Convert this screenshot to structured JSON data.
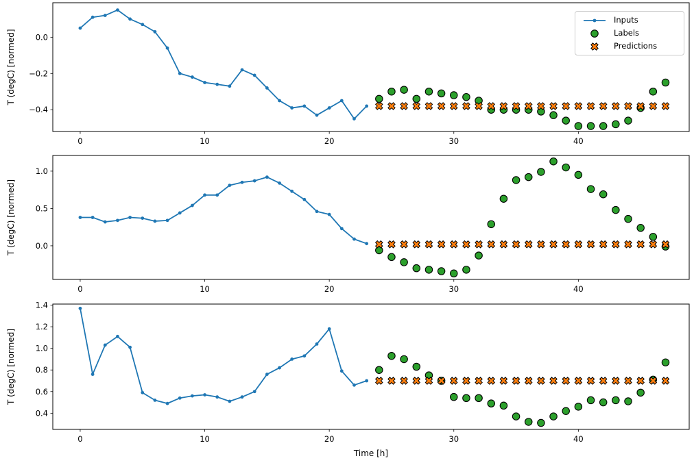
{
  "legend": {
    "position": "upper right",
    "entries": [
      "Inputs",
      "Labels",
      "Predictions"
    ]
  },
  "chart_data": [
    {
      "type": "line+scatter",
      "title": "",
      "xlabel": "",
      "ylabel": "T (degC) [normed]",
      "xlim": [
        -2.2,
        48.9
      ],
      "ylim": [
        -0.52,
        0.19
      ],
      "xticks": [
        0,
        10,
        20,
        30,
        40
      ],
      "yticks": [
        -0.4,
        -0.2,
        0.0
      ],
      "grid": false,
      "legend_position": "upper right",
      "series": [
        {
          "name": "Inputs",
          "type": "line",
          "marker": "dot",
          "color": "#1f77b4",
          "x": [
            0,
            1,
            2,
            3,
            4,
            5,
            6,
            7,
            8,
            9,
            10,
            11,
            12,
            13,
            14,
            15,
            16,
            17,
            18,
            19,
            20,
            21,
            22,
            23
          ],
          "y": [
            0.05,
            0.11,
            0.12,
            0.15,
            0.1,
            0.07,
            0.03,
            -0.06,
            -0.2,
            -0.22,
            -0.25,
            -0.26,
            -0.27,
            -0.18,
            -0.21,
            -0.28,
            -0.35,
            -0.39,
            -0.38,
            -0.43,
            -0.39,
            -0.35,
            -0.45,
            -0.38
          ]
        },
        {
          "name": "Labels",
          "type": "scatter",
          "marker": "circle",
          "color": "#2ca02c",
          "edge": "#000000",
          "x": [
            24,
            25,
            26,
            27,
            28,
            29,
            30,
            31,
            32,
            33,
            34,
            35,
            36,
            37,
            38,
            39,
            40,
            41,
            42,
            43,
            44,
            45,
            46,
            47
          ],
          "y": [
            -0.34,
            -0.3,
            -0.29,
            -0.34,
            -0.3,
            -0.31,
            -0.32,
            -0.33,
            -0.35,
            -0.4,
            -0.4,
            -0.4,
            -0.4,
            -0.41,
            -0.43,
            -0.46,
            -0.49,
            -0.49,
            -0.49,
            -0.48,
            -0.46,
            -0.39,
            -0.3,
            -0.25
          ]
        },
        {
          "name": "Predictions",
          "type": "scatter",
          "marker": "x",
          "color": "#ff7f0e",
          "edge": "#000000",
          "x": [
            24,
            25,
            26,
            27,
            28,
            29,
            30,
            31,
            32,
            33,
            34,
            35,
            36,
            37,
            38,
            39,
            40,
            41,
            42,
            43,
            44,
            45,
            46,
            47
          ],
          "y": [
            -0.38,
            -0.38,
            -0.38,
            -0.38,
            -0.38,
            -0.38,
            -0.38,
            -0.38,
            -0.38,
            -0.38,
            -0.38,
            -0.38,
            -0.38,
            -0.38,
            -0.38,
            -0.38,
            -0.38,
            -0.38,
            -0.38,
            -0.38,
            -0.38,
            -0.38,
            -0.38,
            -0.38
          ]
        }
      ]
    },
    {
      "type": "line+scatter",
      "title": "",
      "xlabel": "",
      "ylabel": "T (degC) [normed]",
      "xlim": [
        -2.2,
        48.9
      ],
      "ylim": [
        -0.45,
        1.21
      ],
      "xticks": [
        0,
        10,
        20,
        30,
        40
      ],
      "yticks": [
        0.0,
        0.5,
        1.0
      ],
      "grid": false,
      "series": [
        {
          "name": "Inputs",
          "type": "line",
          "marker": "dot",
          "color": "#1f77b4",
          "x": [
            0,
            1,
            2,
            3,
            4,
            5,
            6,
            7,
            8,
            9,
            10,
            11,
            12,
            13,
            14,
            15,
            16,
            17,
            18,
            19,
            20,
            21,
            22,
            23
          ],
          "y": [
            0.38,
            0.38,
            0.32,
            0.34,
            0.38,
            0.37,
            0.33,
            0.34,
            0.44,
            0.54,
            0.68,
            0.68,
            0.81,
            0.85,
            0.87,
            0.92,
            0.84,
            0.73,
            0.62,
            0.46,
            0.42,
            0.23,
            0.09,
            0.03
          ]
        },
        {
          "name": "Labels",
          "type": "scatter",
          "marker": "circle",
          "color": "#2ca02c",
          "edge": "#000000",
          "x": [
            24,
            25,
            26,
            27,
            28,
            29,
            30,
            31,
            32,
            33,
            34,
            35,
            36,
            37,
            38,
            39,
            40,
            41,
            42,
            43,
            44,
            45,
            46,
            47
          ],
          "y": [
            -0.06,
            -0.15,
            -0.22,
            -0.3,
            -0.32,
            -0.34,
            -0.37,
            -0.32,
            -0.13,
            0.29,
            0.63,
            0.88,
            0.92,
            0.99,
            1.13,
            1.05,
            0.95,
            0.76,
            0.69,
            0.48,
            0.36,
            0.24,
            0.12,
            -0.01
          ]
        },
        {
          "name": "Predictions",
          "type": "scatter",
          "marker": "x",
          "color": "#ff7f0e",
          "edge": "#000000",
          "x": [
            24,
            25,
            26,
            27,
            28,
            29,
            30,
            31,
            32,
            33,
            34,
            35,
            36,
            37,
            38,
            39,
            40,
            41,
            42,
            43,
            44,
            45,
            46,
            47
          ],
          "y": [
            0.02,
            0.02,
            0.02,
            0.02,
            0.02,
            0.02,
            0.02,
            0.02,
            0.02,
            0.02,
            0.02,
            0.02,
            0.02,
            0.02,
            0.02,
            0.02,
            0.02,
            0.02,
            0.02,
            0.02,
            0.02,
            0.02,
            0.02,
            0.02
          ]
        }
      ]
    },
    {
      "type": "line+scatter",
      "title": "",
      "xlabel": "Time [h]",
      "ylabel": "T (degC) [normed]",
      "xlim": [
        -2.2,
        48.9
      ],
      "ylim": [
        0.25,
        1.41
      ],
      "xticks": [
        0,
        10,
        20,
        30,
        40
      ],
      "yticks": [
        0.4,
        0.6,
        0.8,
        1.0,
        1.2,
        1.4
      ],
      "grid": false,
      "series": [
        {
          "name": "Inputs",
          "type": "line",
          "marker": "dot",
          "color": "#1f77b4",
          "x": [
            0,
            1,
            2,
            3,
            4,
            5,
            6,
            7,
            8,
            9,
            10,
            11,
            12,
            13,
            14,
            15,
            16,
            17,
            18,
            19,
            20,
            21,
            22,
            23
          ],
          "y": [
            1.37,
            0.76,
            1.03,
            1.11,
            1.01,
            0.59,
            0.52,
            0.49,
            0.54,
            0.56,
            0.57,
            0.55,
            0.51,
            0.55,
            0.6,
            0.76,
            0.82,
            0.9,
            0.93,
            1.04,
            1.18,
            0.79,
            0.66,
            0.7
          ]
        },
        {
          "name": "Labels",
          "type": "scatter",
          "marker": "circle",
          "color": "#2ca02c",
          "edge": "#000000",
          "x": [
            24,
            25,
            26,
            27,
            28,
            29,
            30,
            31,
            32,
            33,
            34,
            35,
            36,
            37,
            38,
            39,
            40,
            41,
            42,
            43,
            44,
            45,
            46,
            47
          ],
          "y": [
            0.8,
            0.93,
            0.9,
            0.83,
            0.75,
            0.7,
            0.55,
            0.54,
            0.54,
            0.49,
            0.47,
            0.37,
            0.32,
            0.31,
            0.37,
            0.42,
            0.46,
            0.52,
            0.5,
            0.52,
            0.51,
            0.59,
            0.71,
            0.87
          ]
        },
        {
          "name": "Predictions",
          "type": "scatter",
          "marker": "x",
          "color": "#ff7f0e",
          "edge": "#000000",
          "x": [
            24,
            25,
            26,
            27,
            28,
            29,
            30,
            31,
            32,
            33,
            34,
            35,
            36,
            37,
            38,
            39,
            40,
            41,
            42,
            43,
            44,
            45,
            46,
            47
          ],
          "y": [
            0.7,
            0.7,
            0.7,
            0.7,
            0.7,
            0.7,
            0.7,
            0.7,
            0.7,
            0.7,
            0.7,
            0.7,
            0.7,
            0.7,
            0.7,
            0.7,
            0.7,
            0.7,
            0.7,
            0.7,
            0.7,
            0.7,
            0.7,
            0.7
          ]
        }
      ]
    }
  ]
}
